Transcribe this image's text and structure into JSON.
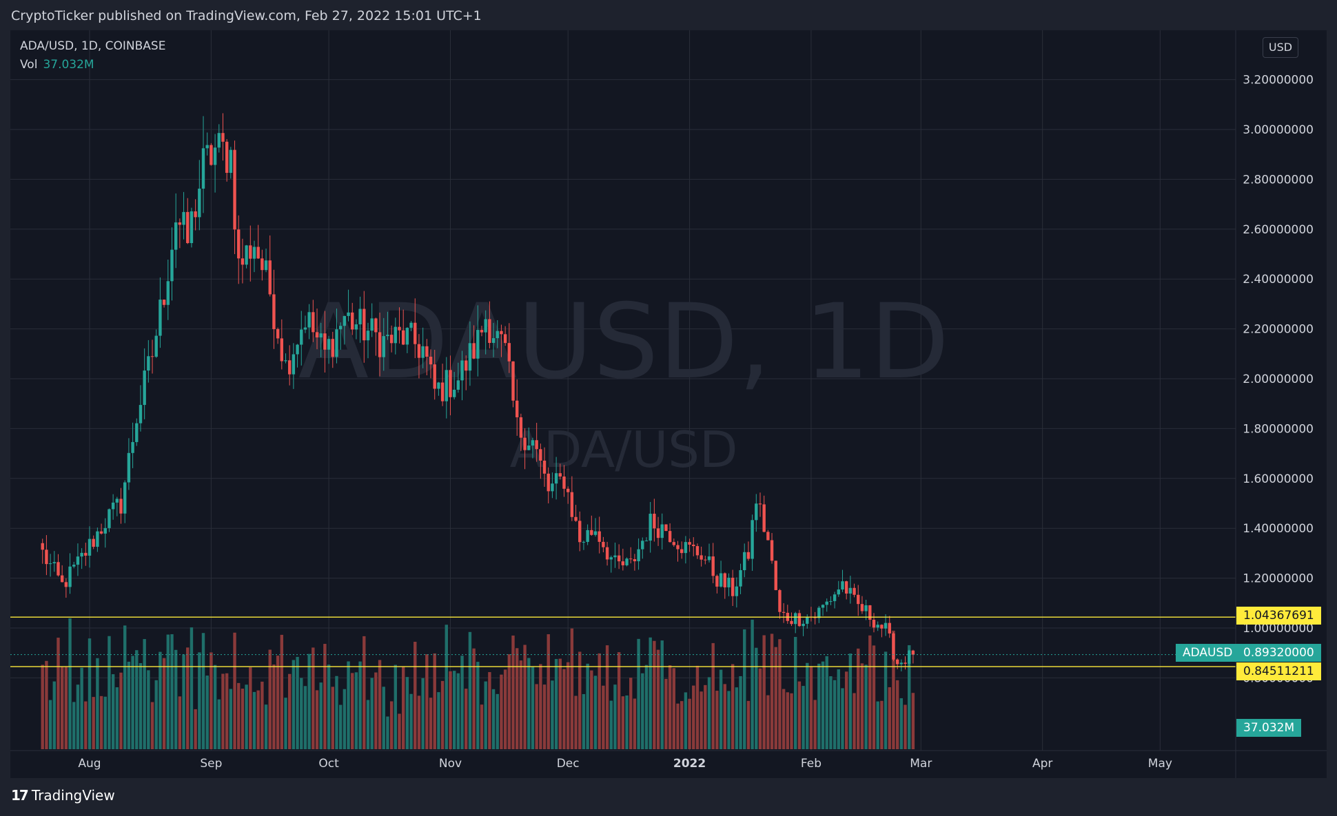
{
  "header": {
    "published": "CryptoTicker published on TradingView.com, Feb 27, 2022 15:01 UTC+1"
  },
  "legend": {
    "symbol": "ADA/USD, 1D, COINBASE",
    "vol_label": "Vol",
    "vol_value": "37.032M"
  },
  "currency": "USD",
  "watermark": {
    "main": "ADAUSD, 1D",
    "sub": "ADA/USD"
  },
  "branding": {
    "logo_mark": "17",
    "logo_text": "TradingView"
  },
  "price_tags": {
    "resistance": "1.04367691",
    "support": "0.84511211",
    "last_symbol": "ADAUSD",
    "last_price": "0.89320000",
    "volume": "37.032M"
  },
  "colors": {
    "up": "#26a69a",
    "down": "#ef5350",
    "line": "#ffeb3b",
    "bg": "#131722",
    "grid": "#2a2e39"
  },
  "chart_data": {
    "type": "candlestick",
    "title": "ADA/USD, 1D, COINBASE",
    "ylim": [
      0.55,
      3.4
    ],
    "y_ticks": [
      "3.20000000",
      "3.00000000",
      "2.80000000",
      "2.60000000",
      "2.40000000",
      "2.20000000",
      "2.00000000",
      "1.80000000",
      "1.60000000",
      "1.40000000",
      "1.20000000",
      "1.00000000",
      "0.80000000"
    ],
    "x_labels": [
      "Aug",
      "Sep",
      "Oct",
      "Nov",
      "Dec",
      "2022",
      "Feb",
      "Mar",
      "Apr",
      "May"
    ],
    "hlines": [
      1.04367691,
      0.84511211
    ],
    "last_price": 0.8932,
    "close_points": [
      [
        "2021-07-20",
        1.3
      ],
      [
        "2021-07-25",
        1.17
      ],
      [
        "2021-07-30",
        1.28
      ],
      [
        "2021-08-05",
        1.43
      ],
      [
        "2021-08-09",
        1.5
      ],
      [
        "2021-08-13",
        1.85
      ],
      [
        "2021-08-17",
        2.1
      ],
      [
        "2021-08-20",
        2.35
      ],
      [
        "2021-08-23",
        2.65
      ],
      [
        "2021-08-26",
        2.55
      ],
      [
        "2021-08-30",
        2.85
      ],
      [
        "2021-09-02",
        2.92
      ],
      [
        "2021-09-06",
        2.9
      ],
      [
        "2021-09-08",
        2.45
      ],
      [
        "2021-09-12",
        2.55
      ],
      [
        "2021-09-16",
        2.35
      ],
      [
        "2021-09-20",
        2.05
      ],
      [
        "2021-09-25",
        2.25
      ],
      [
        "2021-09-30",
        2.1
      ],
      [
        "2021-10-05",
        2.25
      ],
      [
        "2021-10-10",
        2.2
      ],
      [
        "2021-10-15",
        2.15
      ],
      [
        "2021-10-20",
        2.17
      ],
      [
        "2021-10-25",
        2.12
      ],
      [
        "2021-10-28",
        1.95
      ],
      [
        "2021-11-03",
        2.0
      ],
      [
        "2021-11-08",
        2.15
      ],
      [
        "2021-11-10",
        2.25
      ],
      [
        "2021-11-15",
        2.1
      ],
      [
        "2021-11-18",
        1.8
      ],
      [
        "2021-11-22",
        1.75
      ],
      [
        "2021-11-26",
        1.55
      ],
      [
        "2021-11-30",
        1.6
      ],
      [
        "2021-12-04",
        1.35
      ],
      [
        "2021-12-08",
        1.4
      ],
      [
        "2021-12-13",
        1.25
      ],
      [
        "2021-12-17",
        1.25
      ],
      [
        "2021-12-22",
        1.42
      ],
      [
        "2021-12-26",
        1.4
      ],
      [
        "2021-12-31",
        1.32
      ],
      [
        "2022-01-04",
        1.3
      ],
      [
        "2022-01-08",
        1.2
      ],
      [
        "2022-01-12",
        1.15
      ],
      [
        "2022-01-16",
        1.3
      ],
      [
        "2022-01-18",
        1.52
      ],
      [
        "2022-01-21",
        1.35
      ],
      [
        "2022-01-24",
        1.05
      ],
      [
        "2022-01-28",
        1.04
      ],
      [
        "2022-02-02",
        1.05
      ],
      [
        "2022-02-05",
        1.1
      ],
      [
        "2022-02-09",
        1.18
      ],
      [
        "2022-02-12",
        1.1
      ],
      [
        "2022-02-16",
        1.05
      ],
      [
        "2022-02-20",
        0.99
      ],
      [
        "2022-02-23",
        0.86
      ],
      [
        "2022-02-27",
        0.8932
      ]
    ],
    "volume_last": "37.032M"
  }
}
